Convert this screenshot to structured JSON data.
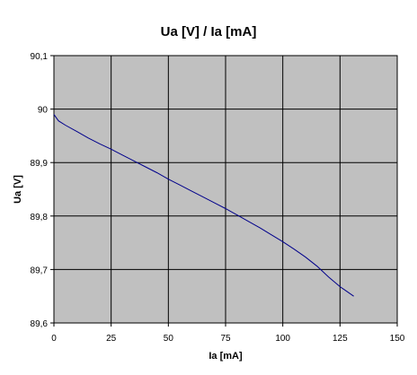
{
  "chart_data": {
    "type": "line",
    "title": "Ua [V] / Ia [mA]",
    "xlabel": "Ia [mA]",
    "ylabel": "Ua [V]",
    "xlim": [
      0,
      150
    ],
    "ylim": [
      89.6,
      90.1
    ],
    "x_ticks": [
      "0",
      "25",
      "50",
      "75",
      "100",
      "125",
      "150"
    ],
    "y_ticks": [
      "89,6",
      "89,7",
      "89,8",
      "89,9",
      "90",
      "90,1"
    ],
    "grid": true,
    "legend": "none",
    "colors": {
      "plot_background": "#c0c0c0",
      "gridline": "#000000",
      "series_line": "#00008b"
    },
    "series": [
      {
        "x": [
          0,
          2,
          5,
          10,
          15,
          20,
          25,
          30,
          35,
          40,
          45,
          50,
          55,
          60,
          65,
          70,
          75,
          80,
          85,
          90,
          95,
          100,
          105,
          110,
          115,
          120,
          125,
          131
        ],
        "y": [
          89.99,
          89.978,
          89.97,
          89.958,
          89.946,
          89.935,
          89.925,
          89.914,
          89.903,
          89.892,
          89.881,
          89.869,
          89.858,
          89.847,
          89.836,
          89.825,
          89.814,
          89.802,
          89.79,
          89.778,
          89.765,
          89.752,
          89.738,
          89.723,
          89.706,
          89.686,
          89.668,
          89.65
        ]
      }
    ]
  }
}
